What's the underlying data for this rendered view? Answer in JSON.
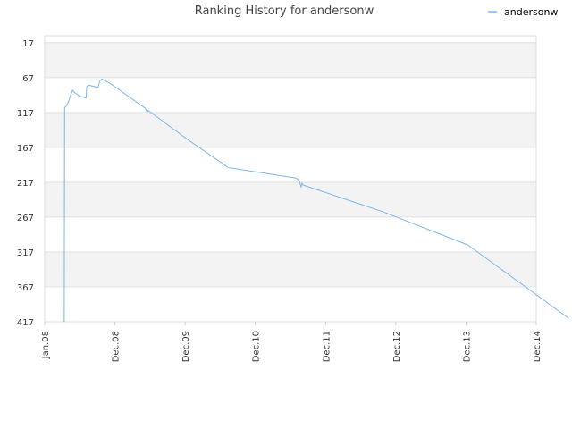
{
  "chart_data": {
    "type": "line",
    "title": "Ranking History for andersonw",
    "xlabel": "",
    "ylabel": "",
    "legend": {
      "position": "top-right",
      "entries": [
        "andersonw"
      ]
    },
    "grid": true,
    "y_inverted": true,
    "ylim": [
      417,
      17
    ],
    "yticks": [
      17,
      67,
      117,
      167,
      217,
      267,
      317,
      367,
      417
    ],
    "xlim": [
      "2008-01",
      "2014-12"
    ],
    "xticks": [
      "Jan.08",
      "Dec.08",
      "Dec.09",
      "Dec.10",
      "Dec.11",
      "Dec.12",
      "Dec.13",
      "Dec.14"
    ],
    "series": [
      {
        "name": "andersonw",
        "color": "#7cb5ec",
        "points": [
          [
            "2008-04-10",
            417
          ],
          [
            "2008-04-12",
            110
          ],
          [
            "2008-04-20",
            108
          ],
          [
            "2008-05-01",
            102
          ],
          [
            "2008-05-15",
            90
          ],
          [
            "2008-05-22",
            85
          ],
          [
            "2008-06-01",
            88
          ],
          [
            "2008-06-15",
            91
          ],
          [
            "2008-07-01",
            94
          ],
          [
            "2008-08-01",
            96
          ],
          [
            "2008-08-04",
            80
          ],
          [
            "2008-08-15",
            78
          ],
          [
            "2008-09-01",
            79
          ],
          [
            "2008-10-01",
            81
          ],
          [
            "2008-10-10",
            72
          ],
          [
            "2008-10-20",
            69
          ],
          [
            "2008-12-01",
            75
          ],
          [
            "2009-06-01",
            111
          ],
          [
            "2009-06-10",
            117
          ],
          [
            "2009-06-15",
            114
          ],
          [
            "2010-01-01",
            155
          ],
          [
            "2010-07-01",
            190
          ],
          [
            "2010-08-01",
            196
          ],
          [
            "2011-07-15",
            211
          ],
          [
            "2011-08-01",
            215
          ],
          [
            "2011-08-10",
            224
          ],
          [
            "2011-08-15",
            218
          ],
          [
            "2011-08-20",
            221
          ],
          [
            "2012-10-01",
            259
          ],
          [
            "2013-12-15",
            307
          ],
          [
            "2015-05-15",
            412
          ]
        ]
      }
    ]
  }
}
